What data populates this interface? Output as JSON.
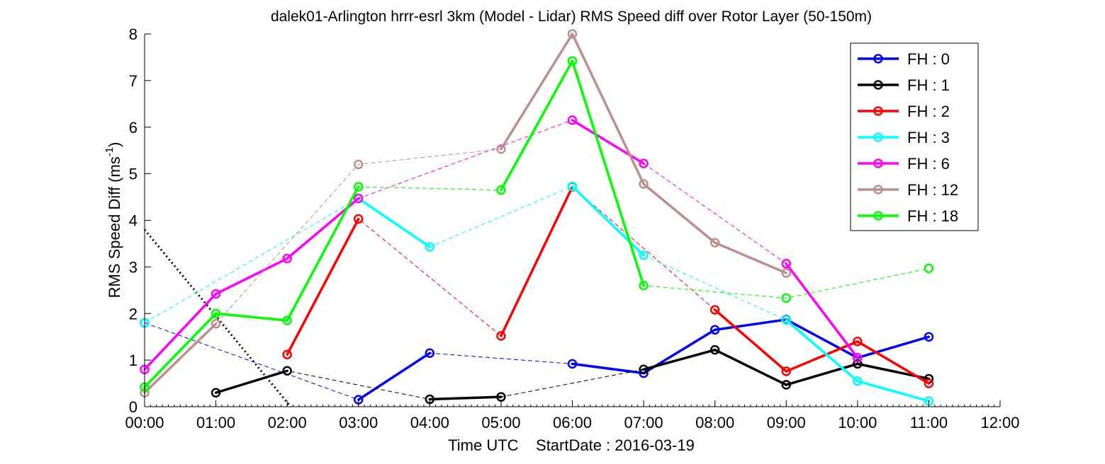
{
  "chart_data": {
    "type": "line",
    "title": "dalek01-Arlington hrrr-esrl 3km (Model - Lidar) RMS Speed diff over Rotor Layer (50-150m)",
    "xlabel": "Time UTC    StartDate : 2016-03-19",
    "ylabel_main": "RMS Speed Diff (ms",
    "ylabel_sup": "-1",
    "ylabel_tail": ")",
    "x_ticks": [
      "00:00",
      "01:00",
      "02:00",
      "03:00",
      "04:00",
      "05:00",
      "06:00",
      "07:00",
      "08:00",
      "09:00",
      "10:00",
      "11:00",
      "12:00"
    ],
    "y_ticks": [
      "0",
      "1",
      "2",
      "3",
      "4",
      "5",
      "6",
      "7",
      "8"
    ],
    "xlim": [
      0,
      12
    ],
    "ylim": [
      0,
      8
    ],
    "grid": false,
    "legend_position": "top-right",
    "legend_entries": [
      "FH : 0",
      "FH : 1",
      "FH : 2",
      "FH : 3",
      "FH : 6",
      "FH : 12",
      "FH : 18"
    ],
    "series": [
      {
        "name": "FH : 0",
        "color": "#0000ff",
        "x": [
          0,
          1,
          2,
          3,
          4,
          5,
          6,
          7,
          8,
          9,
          10,
          11
        ],
        "values": [
          1.8,
          null,
          null,
          0.15,
          1.15,
          null,
          0.92,
          0.72,
          1.65,
          1.87,
          1.05,
          1.5
        ]
      },
      {
        "name": "FH : 1",
        "color": "#000000",
        "x": [
          0,
          1,
          2,
          3,
          4,
          5,
          6,
          7,
          8,
          9,
          10,
          11
        ],
        "values": [
          null,
          0.3,
          0.77,
          null,
          0.16,
          0.21,
          null,
          0.8,
          1.22,
          0.47,
          0.92,
          0.6
        ]
      },
      {
        "name": "FH : 2",
        "color": "#ff0000",
        "x": [
          0,
          1,
          2,
          3,
          4,
          5,
          6,
          7,
          8,
          9,
          10,
          11
        ],
        "values": [
          null,
          null,
          1.12,
          4.03,
          null,
          1.52,
          4.72,
          null,
          2.08,
          0.76,
          1.4,
          0.5
        ]
      },
      {
        "name": "FH : 3",
        "color": "#00ffff",
        "x": [
          0,
          1,
          2,
          3,
          4,
          5,
          6,
          7,
          8,
          9,
          10,
          11
        ],
        "values": [
          1.8,
          null,
          null,
          4.47,
          3.43,
          null,
          4.73,
          3.25,
          null,
          1.86,
          0.55,
          0.12
        ]
      },
      {
        "name": "FH : 6",
        "color": "#ff00ff",
        "x": [
          0,
          1,
          2,
          3,
          4,
          5,
          6,
          7,
          8,
          9,
          10,
          11
        ],
        "values": [
          0.8,
          2.42,
          3.18,
          4.47,
          null,
          null,
          6.15,
          5.22,
          null,
          3.07,
          1.05,
          null
        ]
      },
      {
        "name": "FH : 12",
        "color": "#bc8f8f",
        "x": [
          0,
          1,
          2,
          3,
          4,
          5,
          6,
          7,
          8,
          9,
          10,
          11
        ],
        "values": [
          0.3,
          1.78,
          null,
          5.2,
          null,
          5.53,
          8.0,
          4.78,
          3.52,
          2.87,
          null,
          null
        ]
      },
      {
        "name": "FH : 18",
        "color": "#00ff00",
        "x": [
          0,
          1,
          2,
          3,
          4,
          5,
          6,
          7,
          8,
          9,
          10,
          11
        ],
        "values": [
          0.42,
          2.0,
          1.85,
          4.72,
          null,
          4.65,
          7.42,
          2.6,
          null,
          2.33,
          null,
          2.97
        ]
      }
    ],
    "reference_line": {
      "x": [
        0,
        2.05
      ],
      "y": [
        3.8,
        0
      ],
      "color": "#000000",
      "style": "dotted"
    }
  }
}
